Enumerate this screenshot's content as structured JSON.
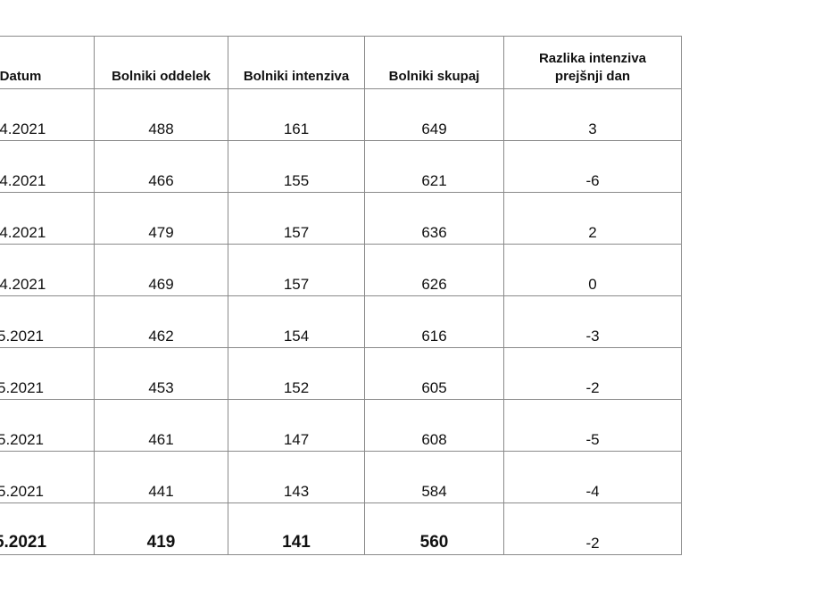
{
  "table": {
    "headers": {
      "date": "Datum",
      "ward": "Bolniki oddelek",
      "icu": "Bolniki intenziva",
      "total": "Bolniki skupaj",
      "diff_line1": "Razlika intenziva",
      "diff_line2": "prejšnji dan"
    },
    "rows": [
      {
        "date": ".4.2021",
        "ward": "488",
        "icu": "161",
        "total": "649",
        "diff": "3"
      },
      {
        "date": ".4.2021",
        "ward": "466",
        "icu": "155",
        "total": "621",
        "diff": "-6"
      },
      {
        "date": ".4.2021",
        "ward": "479",
        "icu": "157",
        "total": "636",
        "diff": "2"
      },
      {
        "date": ".4.2021",
        "ward": "469",
        "icu": "157",
        "total": "626",
        "diff": "0"
      },
      {
        "date": "5.2021",
        "ward": "462",
        "icu": "154",
        "total": "616",
        "diff": "-3"
      },
      {
        "date": "5.2021",
        "ward": "453",
        "icu": "152",
        "total": "605",
        "diff": "-2"
      },
      {
        "date": "5.2021",
        "ward": "461",
        "icu": "147",
        "total": "608",
        "diff": "-5"
      },
      {
        "date": "5.2021",
        "ward": "441",
        "icu": "143",
        "total": "584",
        "diff": "-4"
      },
      {
        "date": "5.2021",
        "ward": "419",
        "icu": "141",
        "total": "560",
        "diff": "-2"
      }
    ]
  },
  "colors": {
    "ward": "#4a70b0",
    "icu": "#e2822e",
    "total": "#6aaa3c",
    "text": "#111111",
    "border": "#8a8a8a"
  }
}
